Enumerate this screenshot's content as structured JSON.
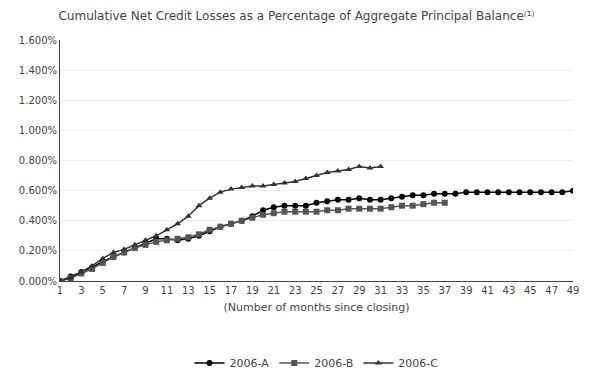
{
  "chart_data": {
    "type": "line",
    "title": "Cumulative Net Credit Losses as a Percentage of Aggregate Principal Balance⁽¹⁾",
    "x_label": "(Number of months since closing)",
    "xlim": [
      1,
      49
    ],
    "ylim": [
      0.0,
      0.016
    ],
    "xticks": [
      1,
      3,
      5,
      7,
      9,
      11,
      13,
      15,
      17,
      19,
      21,
      23,
      25,
      27,
      29,
      31,
      33,
      35,
      37,
      39,
      41,
      43,
      45,
      47,
      49
    ],
    "yticks": [
      {
        "value": 0.0,
        "label": "0.000%"
      },
      {
        "value": 0.002,
        "label": "0.200%"
      },
      {
        "value": 0.004,
        "label": "0.400%"
      },
      {
        "value": 0.006,
        "label": "0.600%"
      },
      {
        "value": 0.008,
        "label": "0.800%"
      },
      {
        "value": 0.01,
        "label": "1.000%"
      },
      {
        "value": 0.012,
        "label": "1.200%"
      },
      {
        "value": 0.014,
        "label": "1.400%"
      },
      {
        "value": 0.016,
        "label": "1.600%"
      }
    ],
    "grid": "y",
    "legend": "bottom",
    "series": [
      {
        "name": "2006-A",
        "color": "#000000",
        "marker": "circle",
        "x": [
          1,
          2,
          3,
          4,
          5,
          6,
          7,
          8,
          9,
          10,
          11,
          12,
          13,
          14,
          15,
          16,
          17,
          18,
          19,
          20,
          21,
          22,
          23,
          24,
          25,
          26,
          27,
          28,
          29,
          30,
          31,
          32,
          33,
          34,
          35,
          36,
          37,
          38,
          39,
          40,
          41,
          42,
          43,
          44,
          45,
          46,
          47,
          48,
          49
        ],
        "values": [
          0.0,
          0.0003,
          0.0006,
          0.0009,
          0.0013,
          0.0016,
          0.0019,
          0.0022,
          0.0025,
          0.0028,
          0.0028,
          0.0027,
          0.0028,
          0.003,
          0.0033,
          0.0036,
          0.0038,
          0.004,
          0.0043,
          0.0047,
          0.0049,
          0.005,
          0.005,
          0.005,
          0.0052,
          0.0053,
          0.0054,
          0.0054,
          0.0055,
          0.0054,
          0.0054,
          0.0055,
          0.0056,
          0.0057,
          0.0057,
          0.0058,
          0.0058,
          0.0058,
          0.0059,
          0.0059,
          0.0059,
          0.0059,
          0.0059,
          0.0059,
          0.0059,
          0.0059,
          0.0059,
          0.0059,
          0.006
        ]
      },
      {
        "name": "2006-B",
        "color": "#555555",
        "marker": "square",
        "x": [
          1,
          2,
          3,
          4,
          5,
          6,
          7,
          8,
          9,
          10,
          11,
          12,
          13,
          14,
          15,
          16,
          17,
          18,
          19,
          20,
          21,
          22,
          23,
          24,
          25,
          26,
          27,
          28,
          29,
          30,
          31,
          32,
          33,
          34,
          35,
          36,
          37
        ],
        "values": [
          0.0,
          0.0002,
          0.0005,
          0.0008,
          0.0012,
          0.0016,
          0.0019,
          0.0022,
          0.0024,
          0.0026,
          0.0027,
          0.0028,
          0.0029,
          0.0031,
          0.0034,
          0.0036,
          0.0038,
          0.004,
          0.0042,
          0.0044,
          0.0045,
          0.0046,
          0.0046,
          0.0046,
          0.0046,
          0.0047,
          0.0047,
          0.0048,
          0.0048,
          0.0048,
          0.0048,
          0.0049,
          0.005,
          0.005,
          0.0051,
          0.0052,
          0.0052
        ]
      },
      {
        "name": "2006-C",
        "color": "#333333",
        "marker": "triangle-up",
        "x": [
          1,
          2,
          3,
          4,
          5,
          6,
          7,
          8,
          9,
          10,
          11,
          12,
          13,
          14,
          15,
          16,
          17,
          18,
          19,
          20,
          21,
          22,
          23,
          24,
          25,
          26,
          27,
          28,
          29,
          30,
          31
        ],
        "values": [
          0.0,
          0.0002,
          0.0006,
          0.001,
          0.0015,
          0.0019,
          0.0021,
          0.0024,
          0.0027,
          0.003,
          0.0034,
          0.0038,
          0.0043,
          0.005,
          0.0055,
          0.0059,
          0.0061,
          0.0062,
          0.0063,
          0.0063,
          0.0064,
          0.0065,
          0.0066,
          0.0068,
          0.007,
          0.0072,
          0.0073,
          0.0074,
          0.0076,
          0.0075,
          0.0076
        ]
      }
    ]
  }
}
